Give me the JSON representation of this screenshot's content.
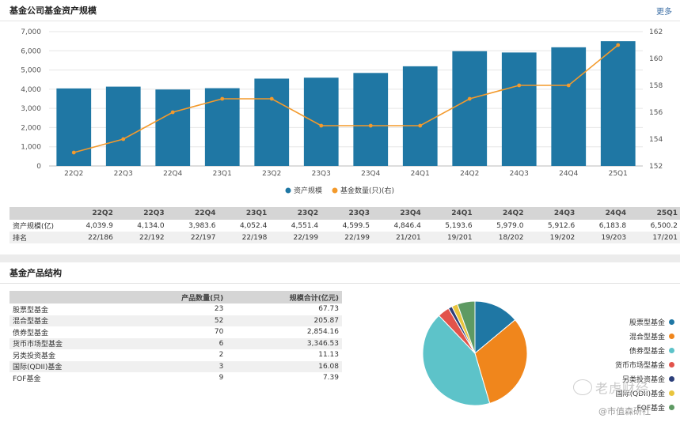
{
  "section1": {
    "title": "基金公司基金资产规模",
    "more": "更多"
  },
  "chart_data": {
    "type": "bar+line",
    "categories": [
      "22Q2",
      "22Q3",
      "22Q4",
      "23Q1",
      "23Q2",
      "23Q3",
      "23Q4",
      "24Q1",
      "24Q2",
      "24Q3",
      "24Q4",
      "25Q1"
    ],
    "series": [
      {
        "name": "资产规模",
        "type": "bar",
        "axis": "left",
        "color": "#1f77a4",
        "values": [
          4039.9,
          4134.0,
          3983.6,
          4052.4,
          4551.4,
          4599.5,
          4846.4,
          5193.6,
          5979.0,
          5912.6,
          6183.8,
          6500.2
        ]
      },
      {
        "name": "基金数量(只)(右)",
        "type": "line",
        "axis": "right",
        "color": "#f39a2c",
        "values": [
          153,
          154,
          156,
          157,
          157,
          155,
          155,
          155,
          157,
          158,
          158,
          161
        ]
      }
    ],
    "ylim_left": [
      0,
      7000
    ],
    "yticks_left": [
      "0",
      "1,000",
      "2,000",
      "3,000",
      "4,000",
      "5,000",
      "6,000",
      "7,000"
    ],
    "ylim_right": [
      152,
      162
    ],
    "yticks_right": [
      "152",
      "154",
      "156",
      "158",
      "160",
      "162"
    ],
    "grid": true,
    "legend": "bottom-center"
  },
  "summary_table": {
    "headers": [
      "22Q2",
      "22Q3",
      "22Q4",
      "23Q1",
      "23Q2",
      "23Q3",
      "23Q4",
      "24Q1",
      "24Q2",
      "24Q3",
      "24Q4",
      "25Q1"
    ],
    "rows": [
      {
        "label": "资产规模(亿)",
        "values": [
          "4,039.9",
          "4,134.0",
          "3,983.6",
          "4,052.4",
          "4,551.4",
          "4,599.5",
          "4,846.4",
          "5,193.6",
          "5,979.0",
          "5,912.6",
          "6,183.8",
          "6,500.2"
        ]
      },
      {
        "label": "排名",
        "values": [
          "22/186",
          "22/192",
          "22/197",
          "22/198",
          "22/199",
          "22/199",
          "21/201",
          "19/201",
          "18/202",
          "19/202",
          "19/203",
          "17/201"
        ]
      }
    ]
  },
  "section2": {
    "title": "基金产品结构"
  },
  "product_table": {
    "headers": [
      "",
      "产品数量(只)",
      "规模合计(亿元)"
    ],
    "rows": [
      {
        "name": "股票型基金",
        "count": "23",
        "scale": "67.73"
      },
      {
        "name": "混合型基金",
        "count": "52",
        "scale": "205.87"
      },
      {
        "name": "债券型基金",
        "count": "70",
        "scale": "2,854.16"
      },
      {
        "name": "货币市场型基金",
        "count": "6",
        "scale": "3,346.53"
      },
      {
        "name": "另类投资基金",
        "count": "2",
        "scale": "11.13"
      },
      {
        "name": "国际(QDII)基金",
        "count": "3",
        "scale": "16.08"
      },
      {
        "name": "FOF基金",
        "count": "9",
        "scale": "7.39"
      }
    ]
  },
  "pie_chart": {
    "type": "pie",
    "slices": [
      {
        "label": "股票型基金",
        "value": 23,
        "color": "#1f77a4"
      },
      {
        "label": "混合型基金",
        "value": 52,
        "color": "#f0861c"
      },
      {
        "label": "债券型基金",
        "value": 70,
        "color": "#5dc3c9"
      },
      {
        "label": "货币市场型基金",
        "value": 6,
        "color": "#e2534b"
      },
      {
        "label": "另类投资基金",
        "value": 2,
        "color": "#2c3f7a"
      },
      {
        "label": "国际(QDII)基金",
        "value": 3,
        "color": "#e9c53e"
      },
      {
        "label": "FOF基金",
        "value": 9,
        "color": "#5e9a63"
      }
    ]
  },
  "watermark": {
    "line1": "老虎财经",
    "line2": "@市值森研社"
  }
}
